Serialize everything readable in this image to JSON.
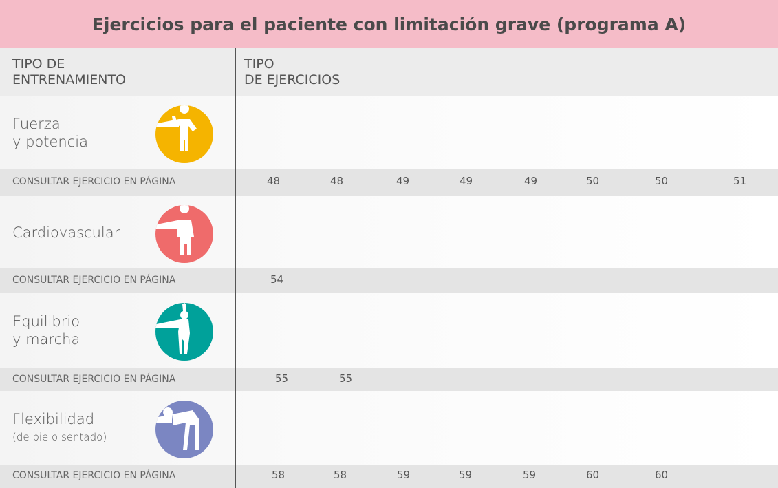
{
  "header": {
    "title": "Ejercicios para el paciente con limitación grave (programa A)"
  },
  "table": {
    "columns": [
      [
        "TIPO DE",
        "ENTRENAMIENTO"
      ],
      [
        "TIPO",
        "DE EJERCICIOS"
      ]
    ],
    "sections": [
      {
        "label": [
          "Fuerza",
          "y potencia"
        ],
        "page_label": "CONSULTAR EJERCICIO EN PÁGINA",
        "pages": [
          48,
          48,
          49,
          49,
          49,
          50,
          50,
          51
        ]
      },
      {
        "label": [
          "Cardiovascular"
        ],
        "page_label": "CONSULTAR EJERCICIO EN PÁGINA",
        "pages": [
          54
        ]
      },
      {
        "label": [
          "Equilibrio",
          "y marcha"
        ],
        "page_label": "CONSULTAR EJERCICIO EN PÁGINA",
        "pages": [
          55,
          55
        ]
      },
      {
        "label": [
          "Flexibilidad"
        ],
        "note": "(de pie o sentado)",
        "page_label": "CONSULTAR EJERCICIO EN PÁGINA",
        "pages": [
          58,
          58,
          59,
          59,
          59,
          60,
          60
        ]
      }
    ]
  }
}
